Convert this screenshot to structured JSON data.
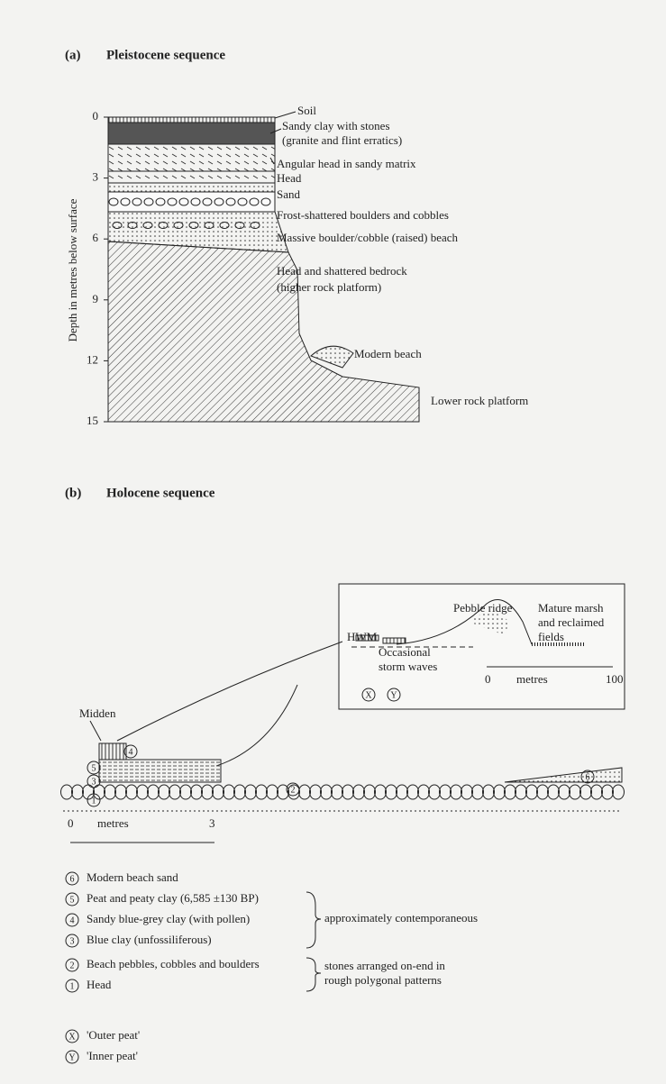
{
  "panel_a": {
    "label": "(a)",
    "title": "Pleistocene sequence",
    "axis_label": "Depth in metres below surface",
    "ticks": [
      0,
      3,
      6,
      9,
      12,
      15
    ],
    "layers": [
      "Soil",
      "Sandy clay with stones",
      "(granite and flint erratics)",
      "Angular head in sandy matrix",
      "Head",
      "Sand",
      "Frost-shattered boulders and cobbles",
      "Massive boulder/cobble (raised) beach",
      "Head and shattered bedrock",
      "(higher rock platform)",
      "Modern beach",
      "Lower rock platform"
    ]
  },
  "panel_b": {
    "label": "(b)",
    "title": "Holocene sequence",
    "inset": {
      "pebble_ridge": "Pebble ridge",
      "marsh": [
        "Mature marsh",
        "and reclaimed",
        "fields"
      ],
      "storm": [
        "Occasional",
        "storm waves"
      ],
      "hwm": "HWM",
      "scale": [
        "0",
        "metres",
        "100"
      ]
    },
    "midden": "Midden",
    "scale": [
      "0",
      "metres",
      "3"
    ],
    "legend": [
      {
        "number": "6",
        "text": "Modern beach sand"
      },
      {
        "number": "5",
        "text": "Peat and peaty clay (6,585 ±130 BP)"
      },
      {
        "number": "4",
        "text": "Sandy blue-grey clay (with pollen)"
      },
      {
        "number": "3",
        "text": "Blue clay (unfossiliferous)"
      },
      {
        "number": "2",
        "text": "Beach pebbles, cobbles and boulders"
      },
      {
        "number": "1",
        "text": "Head"
      }
    ],
    "brackets": [
      "approximately contemporaneous",
      "stones arranged on-end in",
      "rough polygonal patterns"
    ],
    "peats": [
      {
        "symbol": "X",
        "text": "'Outer peat'"
      },
      {
        "symbol": "Y",
        "text": "'Inner peat'"
      }
    ]
  }
}
